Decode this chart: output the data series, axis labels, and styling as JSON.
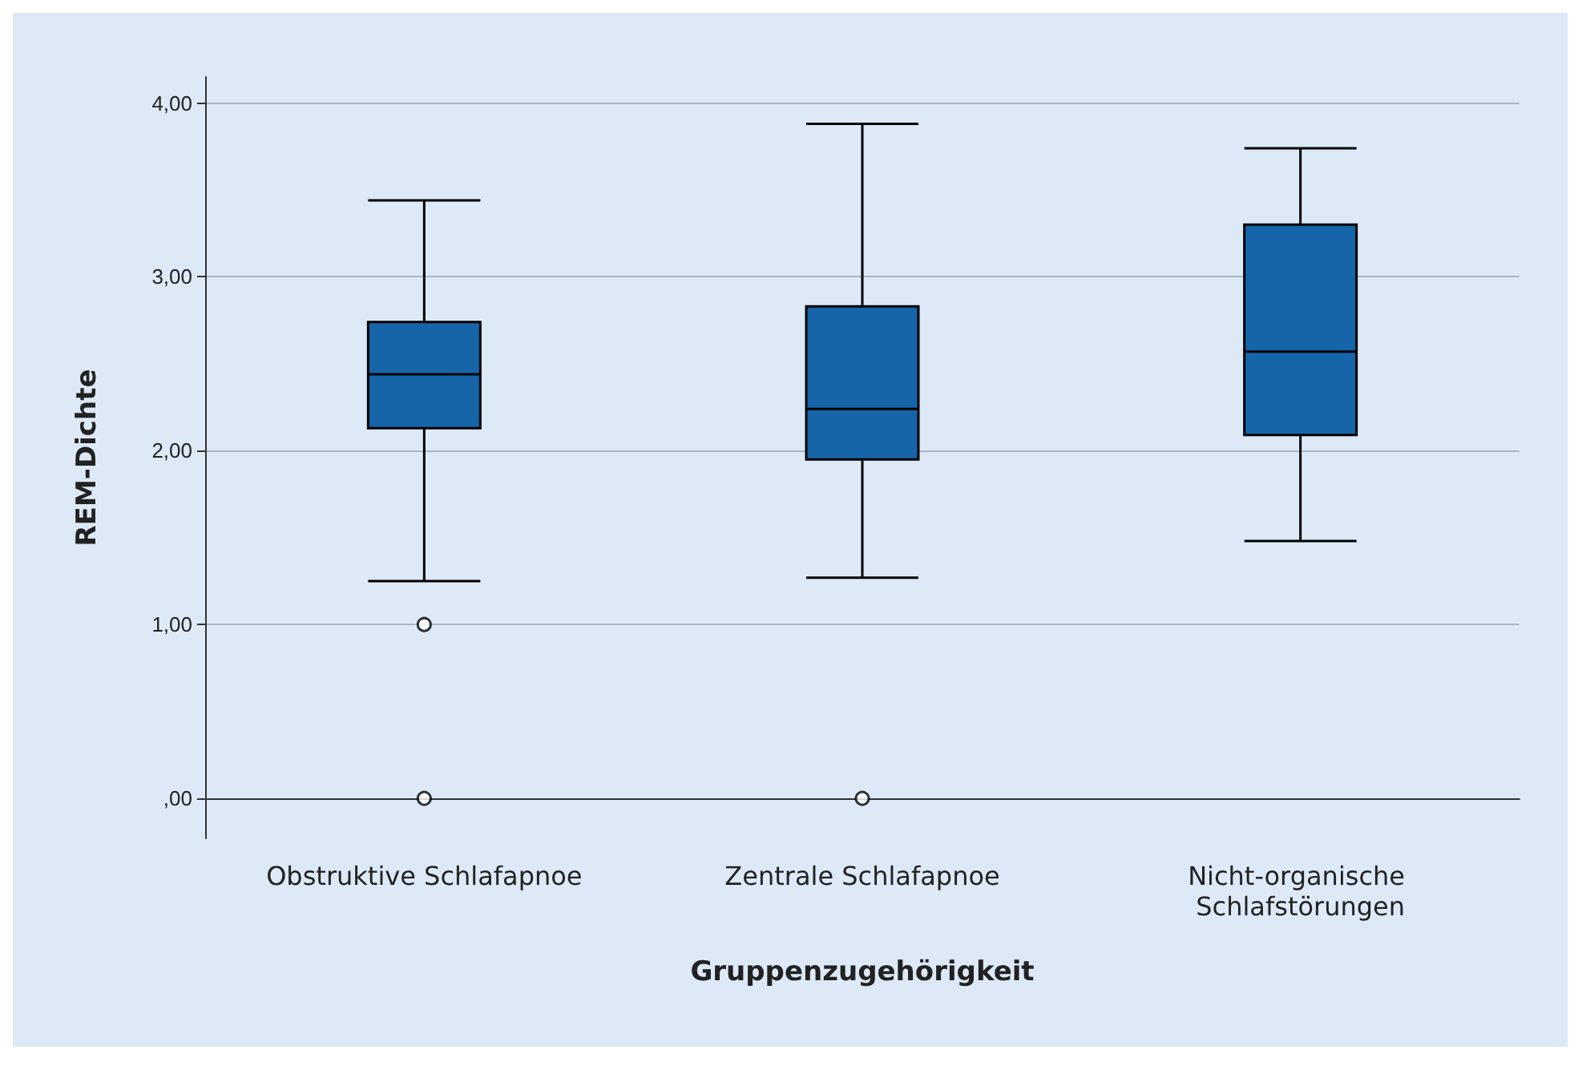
{
  "chart_data": {
    "type": "box",
    "xlabel": "Gruppenzugehörigkeit",
    "ylabel": "REM-Dichte",
    "categories": [
      "Obstruktive Schlafapnoe",
      "Zentrale Schlafapnoe",
      "Nicht-organische Schlafstörungen"
    ],
    "boxes": [
      {
        "low": 1.25,
        "q1": 2.13,
        "median": 2.44,
        "q3": 2.74,
        "high": 3.44,
        "outliers": [
          1.0,
          0.0
        ]
      },
      {
        "low": 1.27,
        "q1": 1.95,
        "median": 2.24,
        "q3": 2.83,
        "high": 3.88,
        "outliers": [
          0.0
        ]
      },
      {
        "low": 1.48,
        "q1": 2.09,
        "median": 2.57,
        "q3": 3.3,
        "high": 3.74
      }
    ],
    "color": "#1565a8",
    "ylim": [
      -0.23,
      4.15
    ],
    "yticks": [
      {
        "value": 0,
        "label": ",00"
      },
      {
        "value": 1,
        "label": "1,00"
      },
      {
        "value": 2,
        "label": "2,00"
      },
      {
        "value": 3,
        "label": "3,00"
      },
      {
        "value": 4,
        "label": "4,00"
      }
    ],
    "grid": "y",
    "marker": "circle"
  }
}
